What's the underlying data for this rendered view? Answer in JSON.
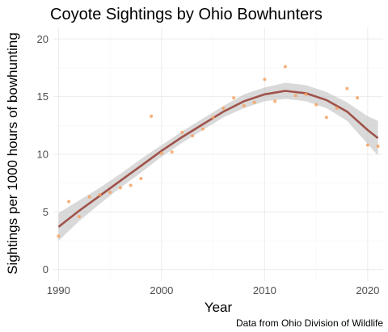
{
  "chart_data": {
    "type": "scatter",
    "title": "Coyote Sightings by Ohio Bowhunters",
    "xlabel": "Year",
    "ylabel": "Sightings per 1000 hours of bowhunting",
    "caption": "Data from Ohio Division of Wildlife",
    "xlim": [
      1989.5,
      2021.5
    ],
    "ylim": [
      -1,
      21
    ],
    "xticks": [
      1990,
      2000,
      2010,
      2020
    ],
    "yticks": [
      0,
      5,
      10,
      15,
      20
    ],
    "grid": true,
    "colors": {
      "points": "#f4a261",
      "smooth": "#a0524a",
      "band": "#bfbfbf"
    },
    "points": [
      {
        "x": 1990,
        "y": 2.9
      },
      {
        "x": 1991,
        "y": 5.9
      },
      {
        "x": 1992,
        "y": 4.6
      },
      {
        "x": 1993,
        "y": 6.3
      },
      {
        "x": 1994,
        "y": 6.5
      },
      {
        "x": 1995,
        "y": 6.7
      },
      {
        "x": 1996,
        "y": 7.1
      },
      {
        "x": 1997,
        "y": 7.3
      },
      {
        "x": 1998,
        "y": 7.9
      },
      {
        "x": 1999,
        "y": 13.3
      },
      {
        "x": 2000,
        "y": 10.1
      },
      {
        "x": 2001,
        "y": 10.2
      },
      {
        "x": 2002,
        "y": 11.9
      },
      {
        "x": 2003,
        "y": 11.6
      },
      {
        "x": 2004,
        "y": 12.2
      },
      {
        "x": 2005,
        "y": 13.2
      },
      {
        "x": 2006,
        "y": 14.0
      },
      {
        "x": 2007,
        "y": 14.9
      },
      {
        "x": 2008,
        "y": 14.2
      },
      {
        "x": 2009,
        "y": 14.5
      },
      {
        "x": 2010,
        "y": 16.5
      },
      {
        "x": 2011,
        "y": 14.6
      },
      {
        "x": 2012,
        "y": 17.6
      },
      {
        "x": 2013,
        "y": 15.1
      },
      {
        "x": 2014,
        "y": 15.2
      },
      {
        "x": 2015,
        "y": 14.3
      },
      {
        "x": 2016,
        "y": 13.2
      },
      {
        "x": 2017,
        "y": 14.0
      },
      {
        "x": 2018,
        "y": 15.7
      },
      {
        "x": 2019,
        "y": 14.9
      },
      {
        "x": 2020,
        "y": 10.8
      },
      {
        "x": 2021,
        "y": 10.7
      }
    ],
    "smooth": {
      "x": [
        1990,
        1992,
        1994,
        1996,
        1998,
        2000,
        2002,
        2004,
        2006,
        2008,
        2010,
        2012,
        2014,
        2016,
        2018,
        2020,
        2021
      ],
      "y": [
        3.7,
        5.1,
        6.4,
        7.7,
        9.0,
        10.3,
        11.5,
        12.6,
        13.7,
        14.6,
        15.2,
        15.5,
        15.3,
        14.7,
        13.7,
        12.1,
        11.4
      ],
      "lower": [
        2.5,
        4.2,
        5.7,
        7.1,
        8.4,
        9.8,
        11.0,
        12.1,
        13.2,
        14.0,
        14.6,
        14.8,
        14.6,
        14.0,
        12.9,
        10.9,
        9.9
      ],
      "upper": [
        4.9,
        6.0,
        7.1,
        8.3,
        9.6,
        10.8,
        12.0,
        13.1,
        14.2,
        15.2,
        15.8,
        16.2,
        16.0,
        15.4,
        14.5,
        13.3,
        12.9
      ]
    }
  }
}
